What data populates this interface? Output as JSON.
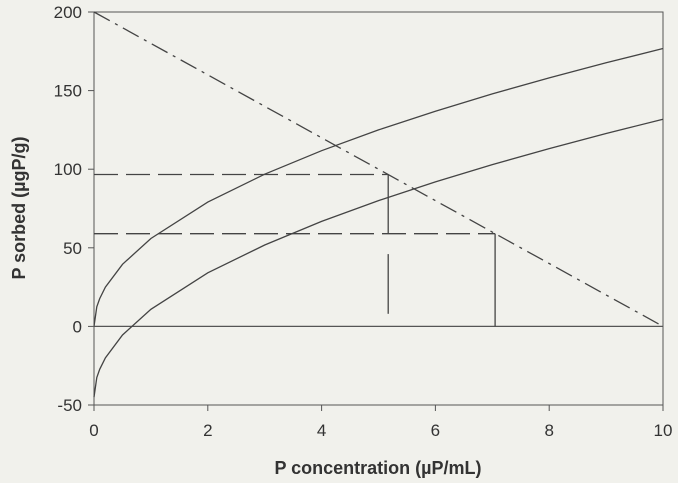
{
  "chart_data": {
    "type": "line",
    "title": "",
    "xlabel": "P concentration (µP/mL)",
    "ylabel": "P sorbed (µgP/g)",
    "xlim": [
      0,
      10
    ],
    "ylim": [
      -50,
      200
    ],
    "x_ticks": [
      0,
      2,
      4,
      6,
      8,
      10
    ],
    "y_ticks": [
      -50,
      0,
      50,
      100,
      150,
      200
    ],
    "grid": false,
    "legend": "none",
    "colors": {
      "background": "#f1f1ec",
      "plot_background": "#f1f1ec",
      "line": "#444444",
      "text": "#333333"
    },
    "series": [
      {
        "style": "solid",
        "x": [
          0,
          0.05,
          0.1,
          0.2,
          0.5,
          1,
          2,
          3,
          4,
          5,
          6,
          7,
          8,
          9,
          10
        ],
        "y": [
          0,
          12.5,
          17.7,
          25,
          39.5,
          55.9,
          79.1,
          96.8,
          111.8,
          125,
          136.9,
          147.9,
          158.1,
          167.7,
          176.8
        ]
      },
      {
        "style": "solid",
        "x": [
          0,
          0.05,
          0.1,
          0.2,
          0.5,
          1,
          2,
          3,
          4,
          5,
          6,
          7,
          8,
          9,
          10
        ],
        "y": [
          -45,
          -32.5,
          -27.3,
          -20,
          -5.5,
          10.9,
          34.1,
          51.8,
          66.8,
          80,
          91.9,
          102.9,
          113.1,
          122.7,
          131.8
        ]
      },
      {
        "style": "dash-dot",
        "x": [
          0,
          10
        ],
        "y": [
          200,
          0
        ]
      },
      {
        "style": "dashed",
        "x": [
          0,
          5.17
        ],
        "y": [
          96.6,
          96.6
        ]
      },
      {
        "style": "dashed",
        "x": [
          0,
          7.05
        ],
        "y": [
          59,
          59
        ]
      },
      {
        "style": "solid",
        "x": [
          5.17,
          5.17
        ],
        "y": [
          96.6,
          59
        ]
      },
      {
        "style": "solid",
        "x": [
          5.17,
          5.17
        ],
        "y": [
          46,
          8
        ]
      },
      {
        "style": "solid",
        "x": [
          7.05,
          7.05
        ],
        "y": [
          59,
          0
        ]
      }
    ]
  }
}
